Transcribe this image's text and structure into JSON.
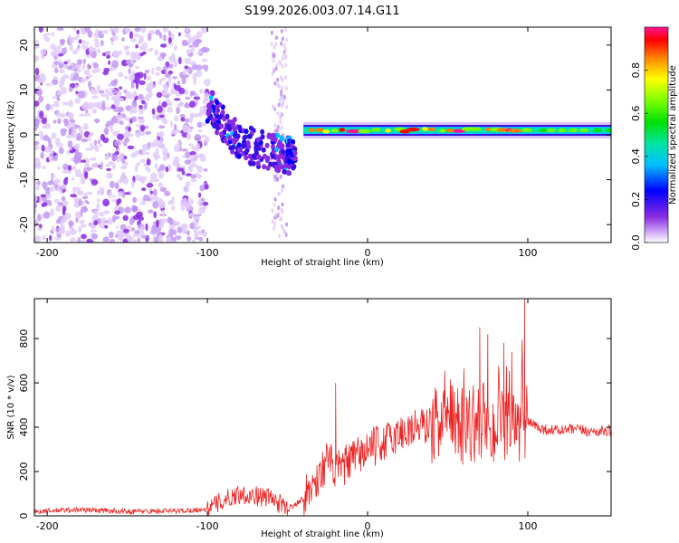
{
  "title": "S199.2026.003.07.14.G11",
  "chart_data": [
    {
      "type": "heatmap",
      "xlabel": "Height of straight line (km)",
      "ylabel": "Frequency (Hz)",
      "xlim": [
        -208,
        152
      ],
      "ylim": [
        -24,
        24
      ],
      "xticks": [
        -200,
        -100,
        0,
        100
      ],
      "yticks": [
        -20,
        -10,
        0,
        10,
        20
      ],
      "colorbar": {
        "label": "Normalized spectral amplitude",
        "range": [
          0,
          1
        ],
        "ticks": [
          "0.0",
          "0.2",
          "0.4",
          "0.6",
          "0.8"
        ],
        "colors": [
          "#ffffff",
          "#d8b8f8",
          "#8a2be2",
          "#0000ff",
          "#00bfff",
          "#00e5a0",
          "#00e000",
          "#7fff00",
          "#ffff00",
          "#ff8000",
          "#ff0000",
          "#ff1493"
        ]
      },
      "features": [
        {
          "name": "noise region",
          "x_range": [
            -208,
            -100
          ],
          "f_range": [
            -24,
            24
          ],
          "amplitude": 0.05
        },
        {
          "name": "descending track",
          "points": [
            [
              -100,
              7
            ],
            [
              -85,
              0
            ],
            [
              -70,
              -3
            ],
            [
              -55,
              -4
            ],
            [
              -45,
              -5
            ]
          ],
          "amplitude": 0.25
        },
        {
          "name": "carrier line",
          "x_range": [
            -40,
            152
          ],
          "frequency": 1,
          "amplitude": 0.85
        }
      ]
    },
    {
      "type": "line",
      "xlabel": "Height of straight line (km)",
      "ylabel": "SNR (10 * v/v)",
      "xlim": [
        -208,
        152
      ],
      "ylim": [
        0,
        980
      ],
      "xticks": [
        -200,
        -100,
        0,
        100
      ],
      "yticks": [
        0,
        200,
        400,
        600,
        800
      ],
      "color": "#ee2222",
      "series": [
        {
          "name": "SNR",
          "x": [
            -208,
            -180,
            -150,
            -120,
            -100,
            -90,
            -80,
            -70,
            -60,
            -50,
            -40,
            -30,
            -25,
            -20,
            -10,
            0,
            10,
            20,
            30,
            40,
            50,
            60,
            70,
            80,
            90,
            95,
            98,
            100,
            110,
            120,
            130,
            140,
            152
          ],
          "y": [
            20,
            28,
            20,
            22,
            30,
            70,
            100,
            90,
            80,
            30,
            80,
            180,
            260,
            200,
            250,
            300,
            330,
            370,
            400,
            410,
            420,
            410,
            420,
            390,
            380,
            400,
            900,
            420,
            390,
            385,
            390,
            380,
            385
          ]
        }
      ],
      "spikes": [
        [
          -20,
          600
        ],
        [
          70,
          850
        ],
        [
          75,
          820
        ],
        [
          85,
          780
        ],
        [
          90,
          740
        ],
        [
          98,
          980
        ]
      ]
    }
  ]
}
